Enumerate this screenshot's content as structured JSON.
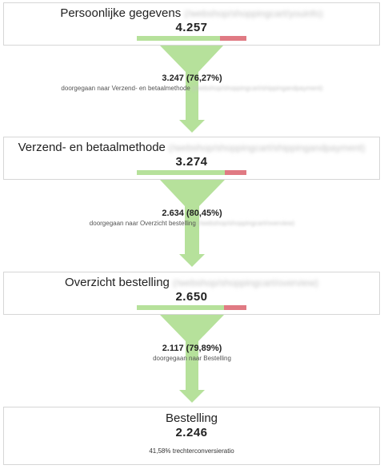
{
  "colors": {
    "funnel": "#b6e19b",
    "bar_green": "#b6e19b",
    "bar_red": "#e07a83",
    "border": "#d6d6d6"
  },
  "steps": [
    {
      "title": "Persoonlijke gegevens",
      "url": "(/webshop/shoppingcart/youinfo)",
      "count": "4.257",
      "continued_fraction": 0.7627
    },
    {
      "title": "Verzend- en betaalmethode",
      "url": "(/webshop/shoppingcart/shippingandpayment)",
      "count": "3.274",
      "continued_fraction": 0.8045
    },
    {
      "title": "Overzicht bestelling",
      "url": "(/webshop/shoppingcart/overview)",
      "count": "2.650",
      "continued_fraction": 0.7989
    },
    {
      "title": "Bestelling",
      "count": "2.246",
      "conversion": "41,58% trechterconversieratio"
    }
  ],
  "flows": [
    {
      "count": "3.247 (76,27%)",
      "desc": "doorgegaan naar Verzend- en betaalmethode",
      "url": "(/webshop/shoppingcart/shippingandpayment)"
    },
    {
      "count": "2.634 (80,45%)",
      "desc": "doorgegaan naar Overzicht bestelling",
      "url": "(/webshop/shoppingcart/overview)"
    },
    {
      "count": "2.117 (79,89%)",
      "desc": "doorgegaan naar Bestelling",
      "url": ""
    }
  ]
}
